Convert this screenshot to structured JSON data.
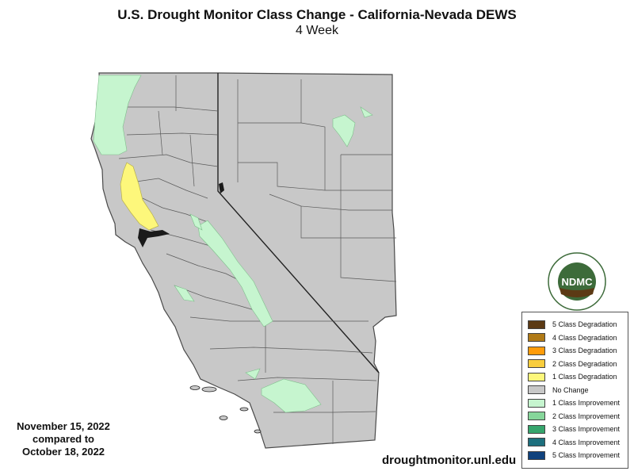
{
  "header": {
    "title": "U.S. Drought Monitor Class Change - California-Nevada DEWS",
    "subtitle": "4 Week"
  },
  "dates": {
    "current": "November 15, 2022",
    "compared": "compared to",
    "previous": "October 18, 2022"
  },
  "footer": {
    "url": "droughtmonitor.unl.edu"
  },
  "logo": {
    "text": "NDMC",
    "ring_text": "NATIONAL DROUGHT MITIGATION CENTER · UNIVERSITY OF NEBRASKA"
  },
  "legend": [
    {
      "label": "5 Class Degradation",
      "color": "#5c3a14"
    },
    {
      "label": "4 Class Degradation",
      "color": "#b07a17"
    },
    {
      "label": "3 Class Degradation",
      "color": "#ff9c0a"
    },
    {
      "label": "2 Class Degradation",
      "color": "#f9cd3d"
    },
    {
      "label": "1 Class Degradation",
      "color": "#fdf77b"
    },
    {
      "label": "No Change",
      "color": "#c8c8c8"
    },
    {
      "label": "1 Class Improvement",
      "color": "#c6f5cf"
    },
    {
      "label": "2 Class Improvement",
      "color": "#86d69a"
    },
    {
      "label": "3 Class Improvement",
      "color": "#36a56d"
    },
    {
      "label": "4 Class Improvement",
      "color": "#1d6f7d"
    },
    {
      "label": "5 Class Improvement",
      "color": "#10427d"
    }
  ],
  "colors": {
    "no_change": "#c8c8c8",
    "improvement_1": "#c6f5cf",
    "degradation_1": "#fdf77b",
    "border": "#4a4a4a",
    "logo_green": "#3d6b3a",
    "logo_brown": "#5c3a14"
  }
}
